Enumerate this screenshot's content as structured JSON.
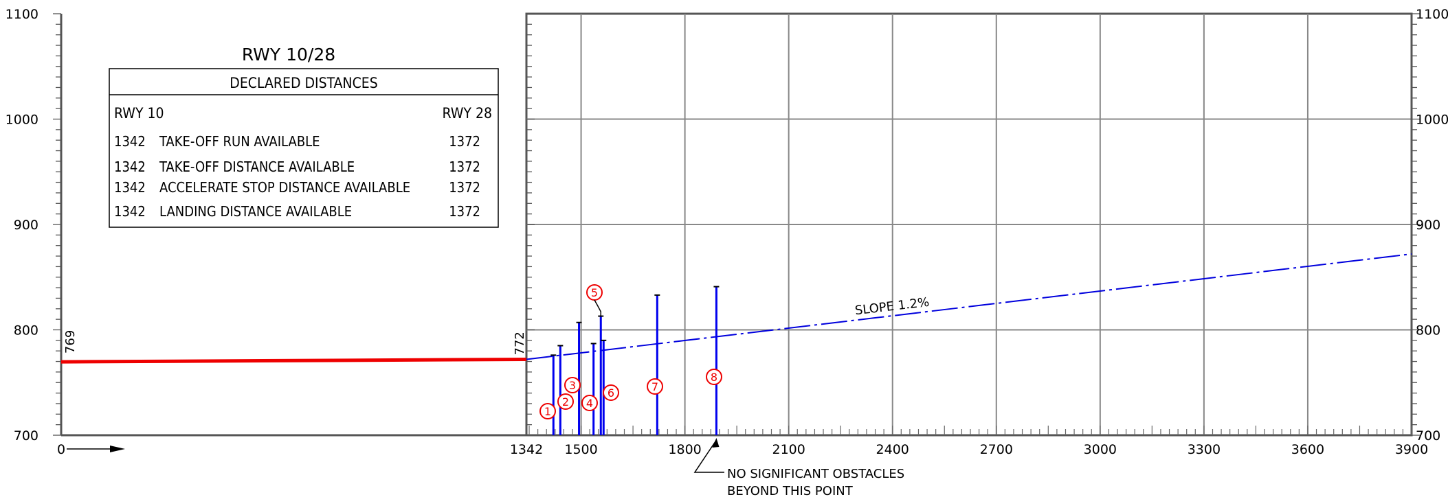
{
  "chart_data": {
    "type": "line",
    "title": "RWY 10/28",
    "y_axis": {
      "ticks": [
        "1100",
        "1000",
        "900",
        "800",
        "700"
      ],
      "ylim": [
        700,
        1100
      ]
    },
    "x_axis": {
      "origin_label": "0",
      "ticks": [
        "1342",
        "1500",
        "1800",
        "2100",
        "2400",
        "2700",
        "3000",
        "3300",
        "3600",
        "3900"
      ],
      "xlim": [
        1342,
        3900
      ]
    },
    "runway": {
      "start_elevation_label": "769",
      "end_elevation_label": "772",
      "start_elevation": 769,
      "end_elevation": 772,
      "length": 1342
    },
    "slope": {
      "label": "SLOPE 1.2%",
      "start": [
        1342,
        772
      ],
      "end": [
        3900,
        872
      ]
    },
    "obstacles": [
      {
        "id": "1",
        "distance": 1420,
        "height": 776
      },
      {
        "id": "2",
        "distance": 1440,
        "height": 785
      },
      {
        "id": "3",
        "distance": 1494,
        "height": 807
      },
      {
        "id": "4",
        "distance": 1536,
        "height": 787
      },
      {
        "id": "5",
        "distance": 1557,
        "height": 813
      },
      {
        "id": "6",
        "distance": 1565,
        "height": 790
      },
      {
        "id": "7",
        "distance": 1720,
        "height": 833
      },
      {
        "id": "8",
        "distance": 1891,
        "height": 841
      }
    ],
    "note": [
      "NO SIGNIFICANT OBSTACLES",
      "BEYOND THIS POINT"
    ],
    "note_distance": 1891
  },
  "declared_distances": {
    "heading": "DECLARED DISTANCES",
    "col_left": "RWY 10",
    "col_right": "RWY 28",
    "rows": [
      {
        "left": "1342",
        "label": "TAKE-OFF RUN AVAILABLE",
        "right": "1372"
      },
      {
        "left": "1342",
        "label": "TAKE-OFF DISTANCE AVAILABLE",
        "right": "1372"
      },
      {
        "left": "1342",
        "label": "ACCELERATE STOP DISTANCE AVAILABLE",
        "right": "1372"
      },
      {
        "left": "1342",
        "label": "LANDING DISTANCE AVAILABLE",
        "right": "1372"
      }
    ]
  },
  "colors": {
    "runway": "#ee0000",
    "obstacle": "#0000ee",
    "slope": "#0000dd",
    "marker": "#ee0000",
    "grid": "#888888",
    "frame": "#555555"
  }
}
